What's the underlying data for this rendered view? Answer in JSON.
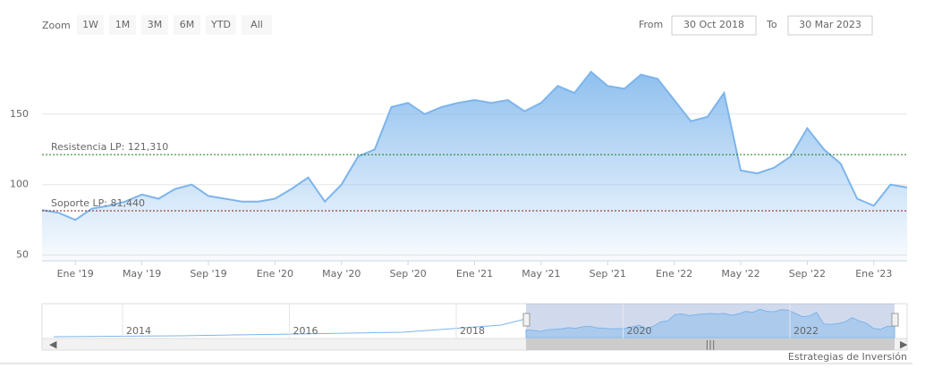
{
  "range_selector": {
    "zoom_label": "Zoom",
    "buttons": [
      "1W",
      "1M",
      "3M",
      "6M",
      "YTD",
      "All"
    ],
    "from_label": "From",
    "from": "30 Oct 2018",
    "to_label": "To",
    "to": "30 Mar 2023"
  },
  "chart_data": {
    "type": "area",
    "color": "#7cb5ec",
    "grid": true,
    "x": [
      "2018-11",
      "2018-12",
      "2019-01",
      "2019-02",
      "2019-03",
      "2019-04",
      "2019-05",
      "2019-06",
      "2019-07",
      "2019-08",
      "2019-09",
      "2019-10",
      "2019-11",
      "2019-12",
      "2020-01",
      "2020-02",
      "2020-03",
      "2020-04",
      "2020-05",
      "2020-06",
      "2020-07",
      "2020-08",
      "2020-09",
      "2020-10",
      "2020-11",
      "2020-12",
      "2021-01",
      "2021-02",
      "2021-03",
      "2021-04",
      "2021-05",
      "2021-06",
      "2021-07",
      "2021-08",
      "2021-09",
      "2021-10",
      "2021-11",
      "2021-12",
      "2022-01",
      "2022-02",
      "2022-03",
      "2022-04",
      "2022-05",
      "2022-06",
      "2022-07",
      "2022-08",
      "2022-09",
      "2022-10",
      "2022-11",
      "2022-12",
      "2023-01",
      "2023-02",
      "2023-03"
    ],
    "values": [
      82,
      80,
      75,
      83,
      85,
      88,
      93,
      90,
      97,
      100,
      92,
      90,
      88,
      88,
      90,
      97,
      105,
      88,
      100,
      120,
      125,
      155,
      158,
      150,
      155,
      158,
      160,
      158,
      160,
      152,
      158,
      170,
      165,
      180,
      170,
      168,
      178,
      175,
      160,
      145,
      148,
      165,
      110,
      108,
      112,
      120,
      140,
      125,
      115,
      90,
      85,
      100,
      98
    ],
    "xlim": [
      "2018-11",
      "2023-03"
    ],
    "xticks": [
      {
        "value": "2019-01",
        "label": "Ene '19"
      },
      {
        "value": "2019-05",
        "label": "May '19"
      },
      {
        "value": "2019-09",
        "label": "Sep '19"
      },
      {
        "value": "2020-01",
        "label": "Ene '20"
      },
      {
        "value": "2020-05",
        "label": "May '20"
      },
      {
        "value": "2020-09",
        "label": "Sep '20"
      },
      {
        "value": "2021-01",
        "label": "Ene '21"
      },
      {
        "value": "2021-05",
        "label": "May '21"
      },
      {
        "value": "2021-09",
        "label": "Sep '21"
      },
      {
        "value": "2022-01",
        "label": "Ene '22"
      },
      {
        "value": "2022-05",
        "label": "May '22"
      },
      {
        "value": "2022-09",
        "label": "Sep '22"
      },
      {
        "value": "2023-01",
        "label": "Ene '23"
      }
    ],
    "ylim": [
      46,
      198
    ],
    "yticks": [
      50,
      100,
      150
    ],
    "plot_lines": [
      {
        "value": 121.31,
        "label": "Resistencia LP: 121,310",
        "color": "#1a7a1a"
      },
      {
        "value": 81.44,
        "label": "Soporte LP: 81,440",
        "color": "#8b1a1a"
      }
    ],
    "navigator_years": [
      "2014",
      "2016",
      "2018",
      "2020",
      "2022"
    ]
  },
  "credit": "Estrategias de Inversión"
}
